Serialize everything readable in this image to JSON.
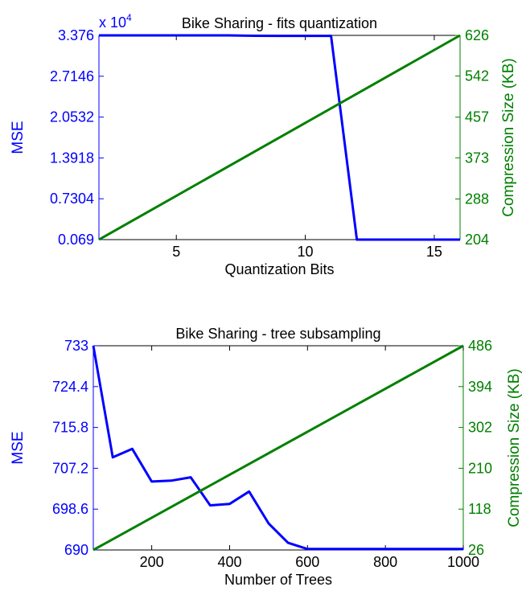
{
  "chart_data": [
    {
      "type": "line",
      "title": "Bike Sharing - fits quantization",
      "xlabel": "Quantization Bits",
      "ylabel_left": "MSE",
      "ylabel_right": "Compression Size (KB)",
      "exponent_prefix": "x 10",
      "exponent_power": "4",
      "xlim": [
        2,
        16
      ],
      "x_ticks": [
        5,
        10,
        15
      ],
      "x_tick_labels": [
        "5",
        "10",
        "15"
      ],
      "ylim_left": [
        0.069,
        3.376
      ],
      "y_ticks_left": [
        0.069,
        0.7304,
        1.3918,
        2.0532,
        2.7146,
        3.376
      ],
      "y_tick_labels_left": [
        "0.069",
        "0.7304",
        "1.3918",
        "2.0532",
        "2.7146",
        "3.376"
      ],
      "ylim_right": [
        204,
        626
      ],
      "y_ticks_right": [
        204,
        288,
        373,
        457,
        542,
        626
      ],
      "y_tick_labels_right": [
        "204",
        "288",
        "373",
        "457",
        "542",
        "626"
      ],
      "grid": false,
      "series": [
        {
          "axis": "left",
          "color": "#0000ff",
          "x": [
            2,
            3,
            4,
            5,
            6,
            7,
            8,
            9,
            10,
            11,
            12,
            13,
            14,
            15,
            16
          ],
          "values": [
            3.376,
            3.376,
            3.376,
            3.376,
            3.376,
            3.376,
            3.37,
            3.368,
            3.368,
            3.368,
            0.069,
            0.069,
            0.069,
            0.069,
            0.069
          ]
        },
        {
          "axis": "right",
          "color": "#008000",
          "x": [
            2,
            16
          ],
          "values": [
            204,
            626
          ]
        }
      ]
    },
    {
      "type": "line",
      "title": "Bike Sharing - tree subsampling",
      "xlabel": "Number of Trees",
      "ylabel_left": "MSE",
      "ylabel_right": "Compression Size (KB)",
      "xlim": [
        50,
        1000
      ],
      "x_ticks": [
        200,
        400,
        600,
        800,
        1000
      ],
      "x_tick_labels": [
        "200",
        "400",
        "600",
        "800",
        "1000"
      ],
      "ylim_left": [
        690,
        733
      ],
      "y_ticks_left": [
        690,
        698.6,
        707.2,
        715.8,
        724.4,
        733
      ],
      "y_tick_labels_left": [
        "690",
        "698.6",
        "707.2",
        "715.8",
        "724.4",
        "733"
      ],
      "ylim_right": [
        26,
        486
      ],
      "y_ticks_right": [
        26,
        118,
        210,
        302,
        394,
        486
      ],
      "y_tick_labels_right": [
        "26",
        "118",
        "210",
        "302",
        "394",
        "486"
      ],
      "grid": false,
      "series": [
        {
          "axis": "left",
          "color": "#0000ff",
          "x": [
            50,
            100,
            150,
            200,
            250,
            300,
            350,
            400,
            450,
            500,
            550,
            600,
            650,
            700,
            750,
            800,
            850,
            900,
            950,
            1000
          ],
          "values": [
            733,
            709.5,
            711.3,
            704.4,
            704.6,
            705.3,
            699.4,
            699.7,
            702.3,
            695.6,
            691.5,
            690.2,
            690.2,
            690.2,
            690.2,
            690.2,
            690.2,
            690.2,
            690.2,
            690.2
          ]
        },
        {
          "axis": "right",
          "color": "#008000",
          "x": [
            50,
            1000
          ],
          "values": [
            26,
            486
          ]
        }
      ]
    }
  ]
}
